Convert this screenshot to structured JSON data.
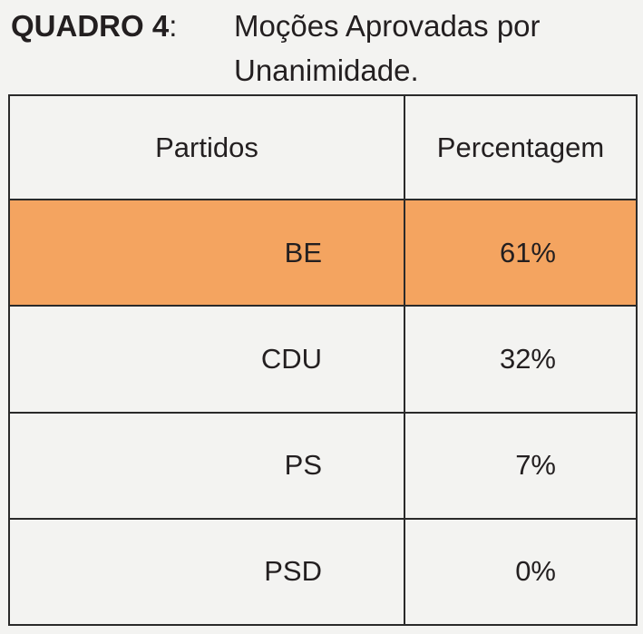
{
  "title": {
    "label": "QUADRO 4",
    "colon": ":",
    "subject_line1": "Moções Aprovadas por",
    "subject_line2": "Unanimidade."
  },
  "table": {
    "headers": [
      "Partidos",
      "Percentagem"
    ],
    "rows": [
      {
        "party": "BE",
        "percent": "61%",
        "highlight": true
      },
      {
        "party": "CDU",
        "percent": "32%",
        "highlight": false
      },
      {
        "party": "PS",
        "percent": "7%",
        "highlight": false
      },
      {
        "party": "PSD",
        "percent": "0%",
        "highlight": false
      }
    ],
    "highlight_color": "#f4a460"
  }
}
